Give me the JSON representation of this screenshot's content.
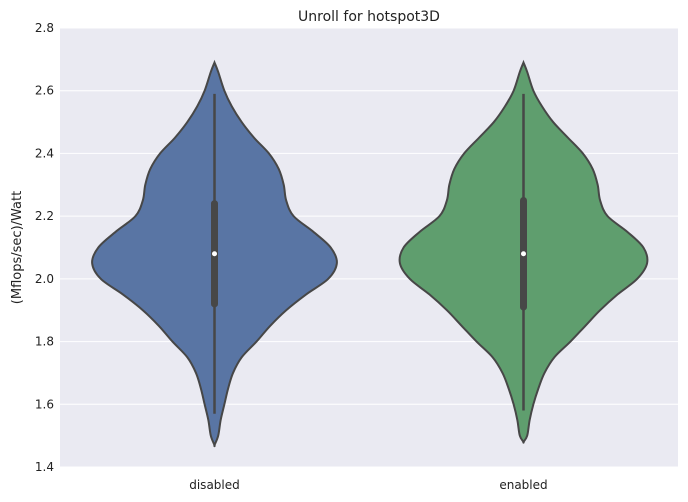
{
  "chart_data": {
    "type": "violin",
    "title": "Unroll for hotspot3D",
    "xlabel": "",
    "ylabel": "(Mflops/sec)/Watt",
    "ylim": [
      1.4,
      2.8
    ],
    "yticks": [
      1.4,
      1.6,
      1.8,
      2.0,
      2.2,
      2.4,
      2.6,
      2.8
    ],
    "ytick_labels": [
      "1.4",
      "1.6",
      "1.8",
      "2.0",
      "2.2",
      "2.4",
      "2.6",
      "2.8"
    ],
    "categories": [
      "disabled",
      "enabled"
    ],
    "grid": true,
    "series": [
      {
        "name": "disabled",
        "color": "#5975a4",
        "min": 1.57,
        "q1": 1.92,
        "median": 2.08,
        "q3": 2.24,
        "max": 2.59,
        "kde_low": 1.47,
        "kde_high": 2.69,
        "density_profile": [
          [
            2.69,
            0.0
          ],
          [
            2.66,
            0.03
          ],
          [
            2.6,
            0.08
          ],
          [
            2.55,
            0.14
          ],
          [
            2.5,
            0.22
          ],
          [
            2.45,
            0.32
          ],
          [
            2.4,
            0.44
          ],
          [
            2.35,
            0.52
          ],
          [
            2.3,
            0.56
          ],
          [
            2.25,
            0.58
          ],
          [
            2.2,
            0.64
          ],
          [
            2.15,
            0.8
          ],
          [
            2.1,
            0.94
          ],
          [
            2.05,
            0.99
          ],
          [
            2.0,
            0.92
          ],
          [
            1.95,
            0.74
          ],
          [
            1.9,
            0.58
          ],
          [
            1.85,
            0.45
          ],
          [
            1.8,
            0.34
          ],
          [
            1.75,
            0.22
          ],
          [
            1.7,
            0.15
          ],
          [
            1.65,
            0.11
          ],
          [
            1.6,
            0.08
          ],
          [
            1.55,
            0.05
          ],
          [
            1.5,
            0.03
          ],
          [
            1.47,
            0.0
          ]
        ]
      },
      {
        "name": "enabled",
        "color": "#5f9e6e",
        "min": 1.58,
        "q1": 1.91,
        "median": 2.08,
        "q3": 2.25,
        "max": 2.59,
        "kde_low": 1.48,
        "kde_high": 2.69,
        "density_profile": [
          [
            2.69,
            0.0
          ],
          [
            2.66,
            0.03
          ],
          [
            2.6,
            0.08
          ],
          [
            2.55,
            0.15
          ],
          [
            2.5,
            0.24
          ],
          [
            2.45,
            0.36
          ],
          [
            2.4,
            0.48
          ],
          [
            2.35,
            0.56
          ],
          [
            2.3,
            0.6
          ],
          [
            2.25,
            0.62
          ],
          [
            2.2,
            0.68
          ],
          [
            2.15,
            0.84
          ],
          [
            2.1,
            0.97
          ],
          [
            2.05,
            1.0
          ],
          [
            2.0,
            0.92
          ],
          [
            1.95,
            0.76
          ],
          [
            1.9,
            0.62
          ],
          [
            1.85,
            0.5
          ],
          [
            1.8,
            0.38
          ],
          [
            1.75,
            0.25
          ],
          [
            1.7,
            0.17
          ],
          [
            1.65,
            0.12
          ],
          [
            1.6,
            0.08
          ],
          [
            1.55,
            0.05
          ],
          [
            1.5,
            0.03
          ],
          [
            1.48,
            0.0
          ]
        ]
      }
    ]
  }
}
